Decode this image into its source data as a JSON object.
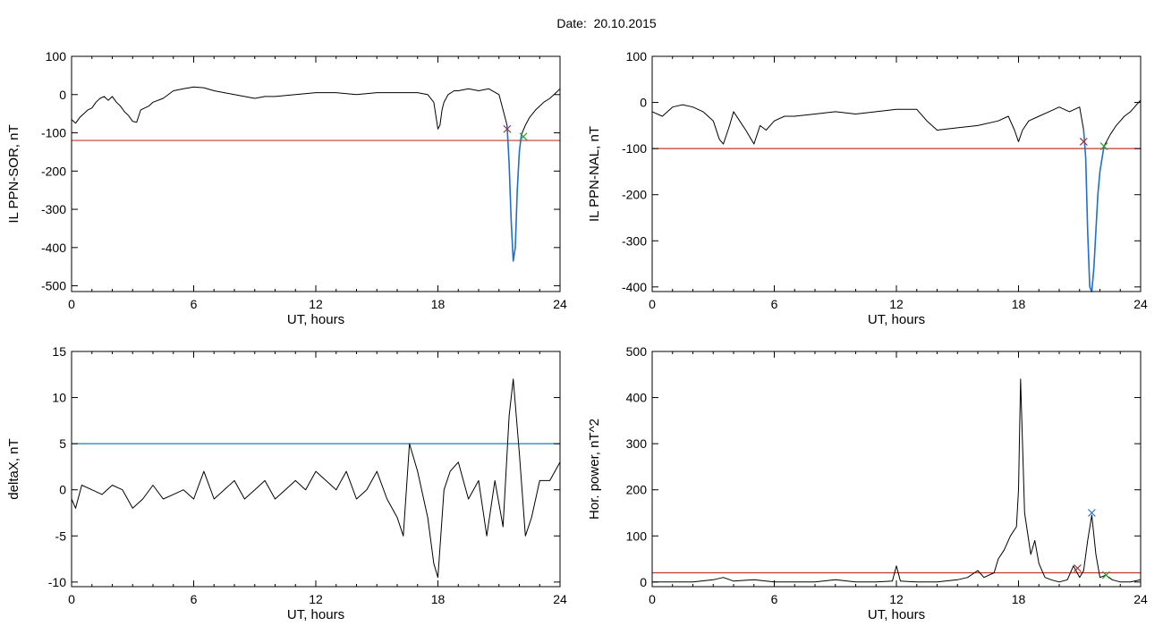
{
  "figure": {
    "title": "Date:  20.10.2015"
  },
  "chart_data": [
    {
      "type": "line",
      "xlabel": "UT, hours",
      "ylabel": "IL PPN-SOR, nT",
      "xlim": [
        0,
        24
      ],
      "ylim": [
        -515,
        100
      ],
      "xticks": [
        0,
        6,
        12,
        18,
        24
      ],
      "yticks": [
        100,
        0,
        -100,
        -200,
        -300,
        -400,
        -500
      ],
      "threshold": {
        "value": -120,
        "color": "#c0392b"
      },
      "series": [
        {
          "color": "#000000",
          "x": [
            0,
            0.2,
            0.4,
            0.6,
            0.8,
            1,
            1.2,
            1.4,
            1.6,
            1.8,
            2,
            2.2,
            2.4,
            2.6,
            2.8,
            3,
            3.2,
            3.4,
            3.6,
            3.8,
            4,
            4.5,
            5,
            5.5,
            6,
            6.5,
            7,
            7.5,
            8,
            8.5,
            9,
            9.5,
            10,
            11,
            12,
            13,
            14,
            15,
            16,
            17,
            17.5,
            17.8,
            18,
            18.1,
            18.2,
            18.3,
            18.5,
            18.8,
            19,
            19.5,
            20,
            20.5,
            21,
            21.2,
            21.4
          ],
          "y": [
            -65,
            -75,
            -60,
            -50,
            -40,
            -35,
            -20,
            -10,
            -5,
            -15,
            -5,
            -20,
            -30,
            -45,
            -55,
            -70,
            -72,
            -40,
            -35,
            -30,
            -20,
            -10,
            10,
            15,
            20,
            18,
            10,
            5,
            0,
            -5,
            -10,
            -5,
            -5,
            0,
            5,
            5,
            0,
            5,
            5,
            5,
            0,
            -20,
            -90,
            -80,
            -40,
            -20,
            0,
            10,
            10,
            15,
            10,
            15,
            0,
            -40,
            -80
          ]
        },
        {
          "color": "#000000",
          "x": [
            22.1,
            22.3,
            22.5,
            22.8,
            23,
            23.2,
            23.5,
            23.8,
            24
          ],
          "y": [
            -105,
            -80,
            -60,
            -40,
            -30,
            -20,
            -10,
            5,
            15
          ]
        },
        {
          "color": "#1f6fd0",
          "x": [
            21.4,
            21.5,
            21.6,
            21.7,
            21.8,
            21.9,
            22,
            22.1
          ],
          "y": [
            -80,
            -180,
            -330,
            -435,
            -400,
            -250,
            -150,
            -105
          ]
        }
      ],
      "markers": [
        {
          "x": 21.4,
          "y": -90,
          "shape": "x",
          "color": "#a03030"
        },
        {
          "x": 22.2,
          "y": -110,
          "shape": "x",
          "color": "#2e9b2e"
        }
      ]
    },
    {
      "type": "line",
      "xlabel": "UT, hours",
      "ylabel": "IL PPN-NAL, nT",
      "xlim": [
        0,
        24
      ],
      "ylim": [
        -410,
        100
      ],
      "xticks": [
        0,
        6,
        12,
        18,
        24
      ],
      "yticks": [
        100,
        0,
        -100,
        -200,
        -300,
        -400
      ],
      "threshold": {
        "value": -100,
        "color": "#c0392b"
      },
      "series": [
        {
          "color": "#000000",
          "x": [
            0,
            0.5,
            1,
            1.5,
            2,
            2.5,
            3,
            3.3,
            3.5,
            3.8,
            4,
            4.3,
            4.6,
            5,
            5.3,
            5.6,
            6,
            6.5,
            7,
            8,
            9,
            10,
            11,
            12,
            13,
            13.5,
            14,
            15,
            16,
            17,
            17.5,
            17.8,
            18,
            18.2,
            18.5,
            19,
            19.5,
            20,
            20.5,
            21,
            21.2
          ],
          "y": [
            -20,
            -30,
            -10,
            -5,
            -10,
            -20,
            -40,
            -80,
            -90,
            -50,
            -20,
            -40,
            -60,
            -90,
            -50,
            -60,
            -40,
            -30,
            -30,
            -25,
            -20,
            -25,
            -20,
            -15,
            -15,
            -40,
            -60,
            -55,
            -50,
            -40,
            -30,
            -60,
            -85,
            -60,
            -40,
            -30,
            -20,
            -10,
            -20,
            -10,
            -60
          ]
        },
        {
          "color": "#000000",
          "x": [
            22.2,
            22.5,
            22.8,
            23,
            23.2,
            23.5,
            23.8,
            24
          ],
          "y": [
            -95,
            -70,
            -50,
            -40,
            -30,
            -20,
            -5,
            5
          ]
        },
        {
          "color": "#1f6fd0",
          "x": [
            21.2,
            21.3,
            21.4,
            21.5,
            21.6,
            21.7,
            21.9,
            22,
            22.2
          ],
          "y": [
            -60,
            -120,
            -280,
            -400,
            -410,
            -360,
            -200,
            -150,
            -95
          ]
        }
      ],
      "markers": [
        {
          "x": 21.2,
          "y": -85,
          "shape": "x",
          "color": "#a03030"
        },
        {
          "x": 22.2,
          "y": -95,
          "shape": "x",
          "color": "#2e9b2e"
        }
      ]
    },
    {
      "type": "line",
      "xlabel": "UT, hours",
      "ylabel": "deltaX, nT",
      "xlim": [
        0,
        24
      ],
      "ylim": [
        -10.5,
        15
      ],
      "xticks": [
        0,
        6,
        12,
        18,
        24
      ],
      "yticks": [
        15,
        10,
        5,
        0,
        -5,
        -10
      ],
      "threshold": {
        "value": 5,
        "color": "#1f7fb0"
      },
      "series": [
        {
          "color": "#000000",
          "x": [
            0,
            0.2,
            0.5,
            1,
            1.5,
            2,
            2.5,
            3,
            3.5,
            4,
            4.5,
            5,
            5.5,
            6,
            6.5,
            7,
            7.5,
            8,
            8.5,
            9,
            9.5,
            10,
            10.5,
            11,
            11.5,
            12,
            12.5,
            13,
            13.5,
            14,
            14.5,
            15,
            15.5,
            16,
            16.3,
            16.6,
            17,
            17.5,
            17.8,
            18,
            18.3,
            18.6,
            19,
            19.5,
            20,
            20.4,
            20.8,
            21.2,
            21.5,
            21.7,
            22,
            22.3,
            22.6,
            23,
            23.5,
            24
          ],
          "y": [
            -1,
            -2,
            0.5,
            0,
            -0.5,
            0.5,
            0,
            -2,
            -1,
            0.5,
            -1,
            -0.5,
            0,
            -1,
            2,
            -1,
            0,
            1,
            -1,
            0,
            1,
            -1,
            0,
            1,
            0,
            2,
            1,
            0,
            2,
            -1,
            0,
            2,
            -1,
            -3,
            -5,
            5,
            2,
            -3,
            -8,
            -9.5,
            0,
            2,
            3,
            -1,
            1,
            -5,
            1,
            -4,
            8,
            12,
            4,
            -5,
            -3,
            1,
            1,
            3
          ]
        }
      ],
      "markers": []
    },
    {
      "type": "line",
      "xlabel": "UT, hours",
      "ylabel": "Hor. power, nT^2",
      "xlim": [
        0,
        24
      ],
      "ylim": [
        -10,
        500
      ],
      "xticks": [
        0,
        6,
        12,
        18,
        24
      ],
      "yticks": [
        500,
        400,
        300,
        200,
        100,
        0
      ],
      "threshold": {
        "value": 20,
        "color": "#c0392b"
      },
      "series": [
        {
          "color": "#000000",
          "x": [
            0,
            1,
            2,
            3,
            3.5,
            4,
            5,
            6,
            7,
            8,
            9,
            10,
            11,
            11.8,
            12,
            12.2,
            13,
            14,
            15,
            15.5,
            16,
            16.3,
            16.8,
            17,
            17.3,
            17.6,
            17.9,
            18,
            18.1,
            18.3,
            18.6,
            18.8,
            19,
            19.3,
            19.6,
            20,
            20.4,
            20.7,
            21,
            21.2,
            21.4,
            21.6,
            21.8,
            22,
            22.3,
            22.6,
            23,
            23.5,
            24
          ],
          "y": [
            0,
            0,
            0,
            5,
            10,
            2,
            5,
            0,
            0,
            0,
            5,
            0,
            0,
            2,
            35,
            2,
            0,
            0,
            5,
            10,
            25,
            10,
            20,
            50,
            70,
            100,
            120,
            200,
            440,
            150,
            60,
            90,
            40,
            10,
            5,
            0,
            5,
            35,
            10,
            25,
            90,
            145,
            60,
            10,
            15,
            5,
            0,
            0,
            5
          ]
        }
      ],
      "markers": [
        {
          "x": 20.9,
          "y": 30,
          "shape": "x",
          "color": "#a03030"
        },
        {
          "x": 21.6,
          "y": 150,
          "shape": "x",
          "color": "#1f6fd0"
        },
        {
          "x": 22.3,
          "y": 15,
          "shape": "x",
          "color": "#2e9b2e"
        }
      ]
    }
  ]
}
